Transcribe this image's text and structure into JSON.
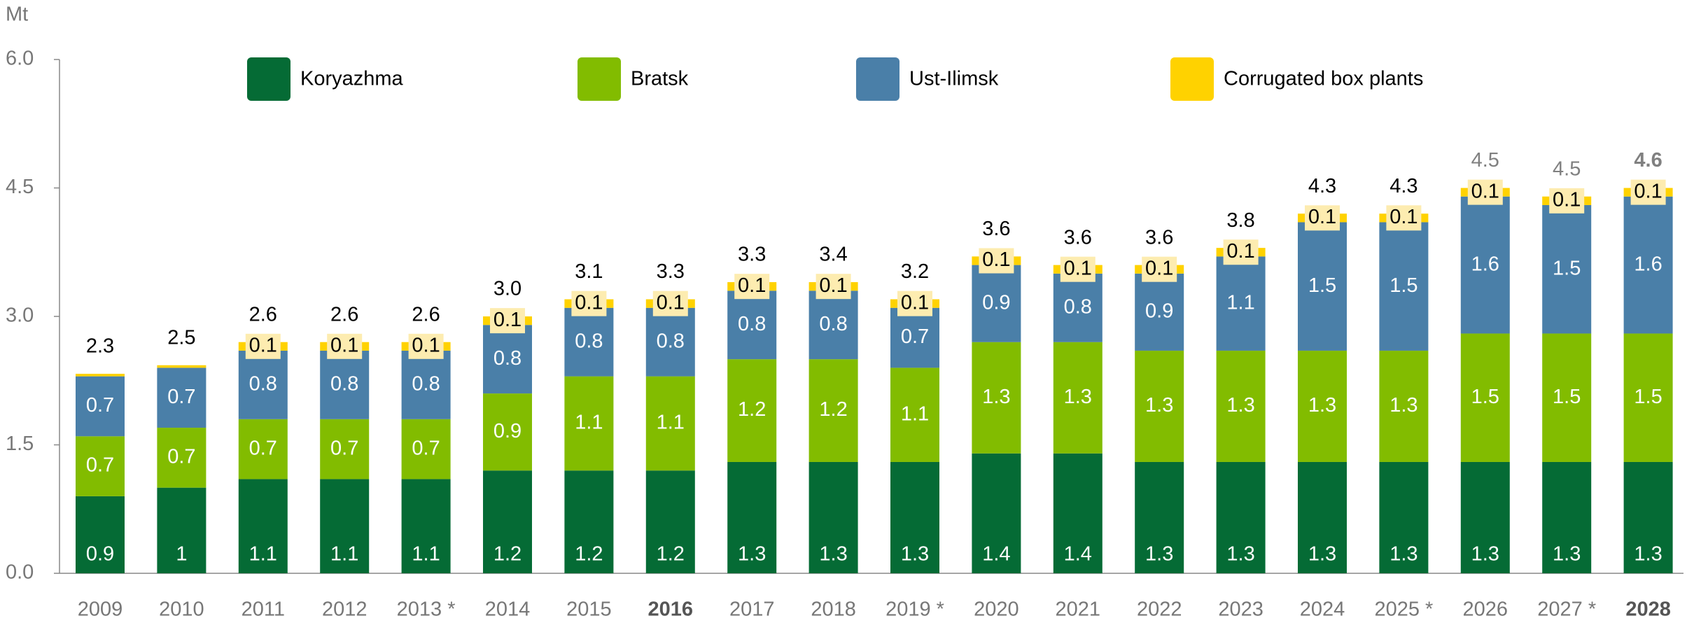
{
  "chart_data": {
    "type": "stacked_bar",
    "y_label": "Mt",
    "categories": [
      "2009",
      "2010",
      "2011",
      "2012",
      "2013 *",
      "2014",
      "2015",
      "2016",
      "2017",
      "2018",
      "2019 *",
      "2020",
      "2021",
      "2022",
      "2023",
      "2024",
      "2025 *",
      "2026",
      "2027 *",
      "2028"
    ],
    "bold_categories": [
      7,
      19
    ],
    "series": [
      {
        "name": "Koryazhma",
        "color": "#056b35",
        "label_color": "#ffffff",
        "values": [
          0.9,
          1.0,
          1.1,
          1.1,
          1.1,
          1.2,
          1.2,
          1.2,
          1.3,
          1.3,
          1.3,
          1.4,
          1.4,
          1.3,
          1.3,
          1.3,
          1.3,
          1.3,
          1.3,
          1.3
        ]
      },
      {
        "name": "Bratsk",
        "color": "#82bc00",
        "label_color": "#ffffff",
        "values": [
          0.7,
          0.7,
          0.7,
          0.7,
          0.7,
          0.9,
          1.1,
          1.1,
          1.2,
          1.2,
          1.1,
          1.3,
          1.3,
          1.3,
          1.3,
          1.3,
          1.3,
          1.5,
          1.5,
          1.5
        ]
      },
      {
        "name": "Ust-Ilimsk",
        "color": "#4a7fa8",
        "label_color": "#ffffff",
        "values": [
          0.7,
          0.7,
          0.8,
          0.8,
          0.8,
          0.8,
          0.8,
          0.8,
          0.8,
          0.8,
          0.7,
          0.9,
          0.8,
          0.9,
          1.1,
          1.5,
          1.5,
          1.6,
          1.5,
          1.6
        ]
      },
      {
        "name": "Corrugated box plants",
        "color": "#ffd200",
        "label_color": "#000000",
        "label_box": "#fdecb0",
        "values": [
          0.03,
          0.03,
          0.1,
          0.1,
          0.1,
          0.1,
          0.1,
          0.1,
          0.1,
          0.1,
          0.1,
          0.1,
          0.1,
          0.1,
          0.1,
          0.1,
          0.1,
          0.1,
          0.1,
          0.1
        ],
        "value_labels": [
          null,
          null,
          "0.1",
          "0.1",
          "0.1",
          "0.1",
          "0.1",
          "0.1",
          "0.1",
          "0.1",
          "0.1",
          "0.1",
          "0.1",
          "0.1",
          "0.1",
          "0.1",
          "0.1",
          "0.1",
          "0.1",
          "0.1"
        ]
      }
    ],
    "totals": [
      2.3,
      2.5,
      2.6,
      2.6,
      2.6,
      3.0,
      3.1,
      3.3,
      3.3,
      3.4,
      3.2,
      3.6,
      3.6,
      3.6,
      3.8,
      4.3,
      4.3,
      4.5,
      4.5,
      4.6
    ],
    "total_labels": [
      "2.3",
      "2.5",
      "2.6",
      "2.6",
      "2.6",
      "3.0",
      "3.1",
      "3.3",
      "3.3",
      "3.4",
      "3.2",
      "3.6",
      "3.6",
      "3.6",
      "3.8",
      "4.3",
      "4.3",
      "4.5",
      "4.5",
      "4.6"
    ],
    "total_colors": [
      "#000000",
      "#000000",
      "#000000",
      "#000000",
      "#000000",
      "#000000",
      "#000000",
      "#000000",
      "#000000",
      "#000000",
      "#000000",
      "#000000",
      "#000000",
      "#000000",
      "#000000",
      "#000000",
      "#000000",
      "#808080",
      "#808080",
      "#808080"
    ],
    "ylim": [
      0,
      6
    ],
    "yticks": [
      {
        "value": 0,
        "label": "0.0"
      },
      {
        "value": 1.5,
        "label": "1.5"
      },
      {
        "value": 3,
        "label": "3.0"
      },
      {
        "value": 4.5,
        "label": "4.5"
      },
      {
        "value": 6,
        "label": "6.0"
      }
    ]
  }
}
